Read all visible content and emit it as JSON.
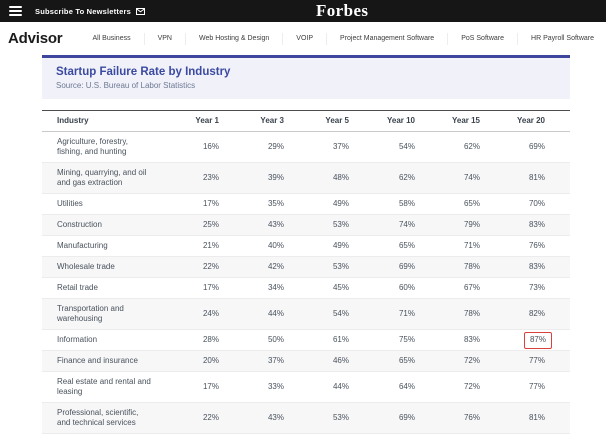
{
  "topbar": {
    "subscribe_label": "Subscribe To Newsletters",
    "brand": "Forbes"
  },
  "nav": {
    "logo": "Advisor",
    "items": [
      "All Business",
      "VPN",
      "Web Hosting & Design",
      "VOIP",
      "Project Management Software",
      "PoS Software",
      "HR Payroll Software"
    ]
  },
  "panel": {
    "title": "Startup Failure Rate by Industry",
    "source": "Source: U.S. Bureau of Labor Statistics"
  },
  "table": {
    "columns": [
      "Industry",
      "Year 1",
      "Year 3",
      "Year 5",
      "Year 10",
      "Year 15",
      "Year 20"
    ],
    "rows": [
      {
        "industry": "Agriculture, forestry, fishing, and hunting",
        "values": [
          "16%",
          "29%",
          "37%",
          "54%",
          "62%",
          "69%"
        ]
      },
      {
        "industry": "Mining, quarrying, and oil and gas extraction",
        "values": [
          "23%",
          "39%",
          "48%",
          "62%",
          "74%",
          "81%"
        ]
      },
      {
        "industry": "Utilities",
        "values": [
          "17%",
          "35%",
          "49%",
          "58%",
          "65%",
          "70%"
        ]
      },
      {
        "industry": "Construction",
        "values": [
          "25%",
          "43%",
          "53%",
          "74%",
          "79%",
          "83%"
        ]
      },
      {
        "industry": "Manufacturing",
        "values": [
          "21%",
          "40%",
          "49%",
          "65%",
          "71%",
          "76%"
        ]
      },
      {
        "industry": "Wholesale trade",
        "values": [
          "22%",
          "42%",
          "53%",
          "69%",
          "78%",
          "83%"
        ]
      },
      {
        "industry": "Retail trade",
        "values": [
          "17%",
          "34%",
          "45%",
          "60%",
          "67%",
          "73%"
        ]
      },
      {
        "industry": "Transportation and warehousing",
        "values": [
          "24%",
          "44%",
          "54%",
          "71%",
          "78%",
          "82%"
        ]
      },
      {
        "industry": "Information",
        "values": [
          "28%",
          "50%",
          "61%",
          "75%",
          "83%",
          "87%"
        ]
      },
      {
        "industry": "Finance and insurance",
        "values": [
          "20%",
          "37%",
          "46%",
          "65%",
          "72%",
          "77%"
        ]
      },
      {
        "industry": "Real estate and rental and leasing",
        "values": [
          "17%",
          "33%",
          "44%",
          "64%",
          "72%",
          "77%"
        ]
      },
      {
        "industry": "Professional, scientific, and technical services",
        "values": [
          "22%",
          "43%",
          "53%",
          "69%",
          "76%",
          "81%"
        ]
      }
    ],
    "highlight": {
      "row_index": 8,
      "value_index": 5,
      "highlighted_value": "87%"
    }
  },
  "colors": {
    "topbar_bg": "#161616",
    "accent_navy": "#3d459c",
    "title_navy": "#3b4aa0",
    "highlight_red": "#d9423c",
    "stripe_gray": "#f7f7f8",
    "panel_bg": "#f1f2f9"
  }
}
